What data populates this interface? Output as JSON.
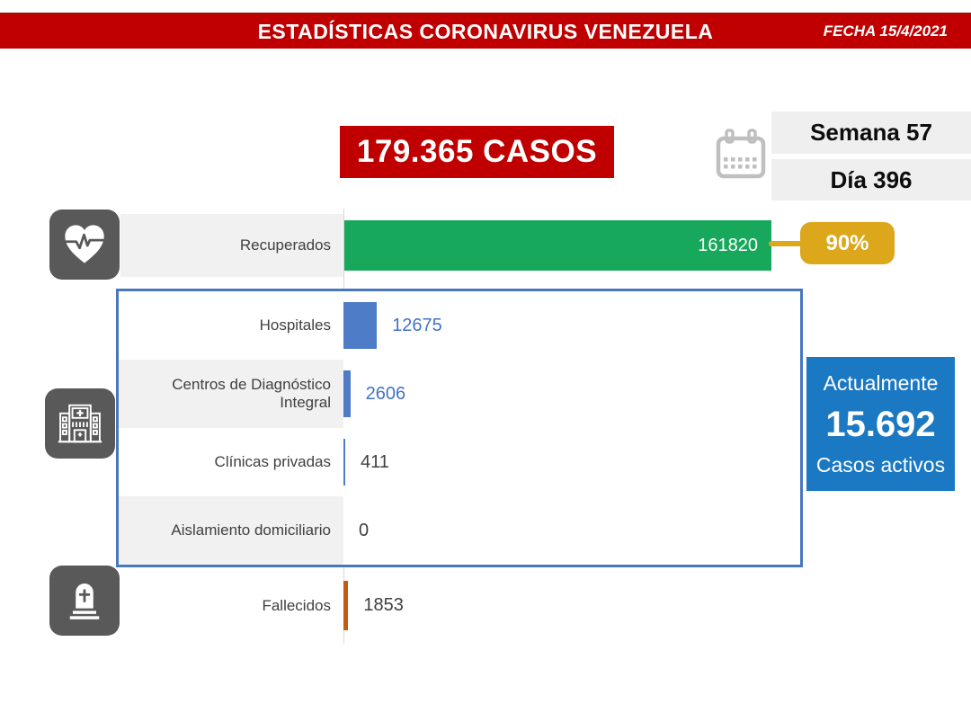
{
  "banner": {
    "title": "ESTADÍSTICAS CORONAVIRUS VENEZUELA",
    "date": "FECHA 15/4/2021"
  },
  "summary": {
    "total_cases": "179.365 CASOS",
    "week": "Semana 57",
    "day": "Día 396"
  },
  "rows": [
    {
      "label": "Recuperados",
      "value": "161820",
      "percent": "90%"
    },
    {
      "label": "Hospitales",
      "value": "12675"
    },
    {
      "label": "Centros de Diagnóstico Integral",
      "value": "2606"
    },
    {
      "label": "Clínicas privadas",
      "value": "411"
    },
    {
      "label": "Aislamiento domiciliario",
      "value": "0"
    },
    {
      "label": "Fallecidos",
      "value": "1853"
    }
  ],
  "active_box": {
    "heading": "Actualmente",
    "value": "15.692",
    "caption": "Casos activos"
  },
  "icons": {
    "recovered": "heart-pulse-icon",
    "hospitalization": "hospital-building-icon",
    "deaths": "tombstone-icon",
    "date": "calendar-icon"
  },
  "colors": {
    "banner_red": "#C00000",
    "recovered_green": "#18A85B",
    "percent_yellow": "#DCA71A",
    "bar_blue": "#4E7CC6",
    "box_border_blue": "#4977BD",
    "active_blue": "#1B78C2",
    "deaths_orange": "#C55A11",
    "icon_gray": "#595959",
    "strip_gray": "#F1F1F1",
    "value_blue": "#4472C4",
    "text_dark": "#404040"
  },
  "chart_data": {
    "type": "bar",
    "orientation": "horizontal",
    "title": "ESTADÍSTICAS CORONAVIRUS VENEZUELA",
    "categories": [
      "Recuperados",
      "Hospitales",
      "Centros de Diagnóstico Integral",
      "Clínicas privadas",
      "Aislamiento domiciliario",
      "Fallecidos"
    ],
    "values": [
      161820,
      12675,
      2606,
      411,
      0,
      1853
    ],
    "series_colors": [
      "#18A85B",
      "#4E7CC6",
      "#4E7CC6",
      "#4E7CC6",
      "#4E7CC6",
      "#C55A11"
    ],
    "annotations": {
      "total_cases": 179365,
      "recovered_percent": "90%",
      "active_cases": 15692,
      "week": 57,
      "day": 396,
      "date": "15/4/2021"
    },
    "xlim": [
      0,
      170000
    ],
    "grid": false,
    "legend": false
  }
}
